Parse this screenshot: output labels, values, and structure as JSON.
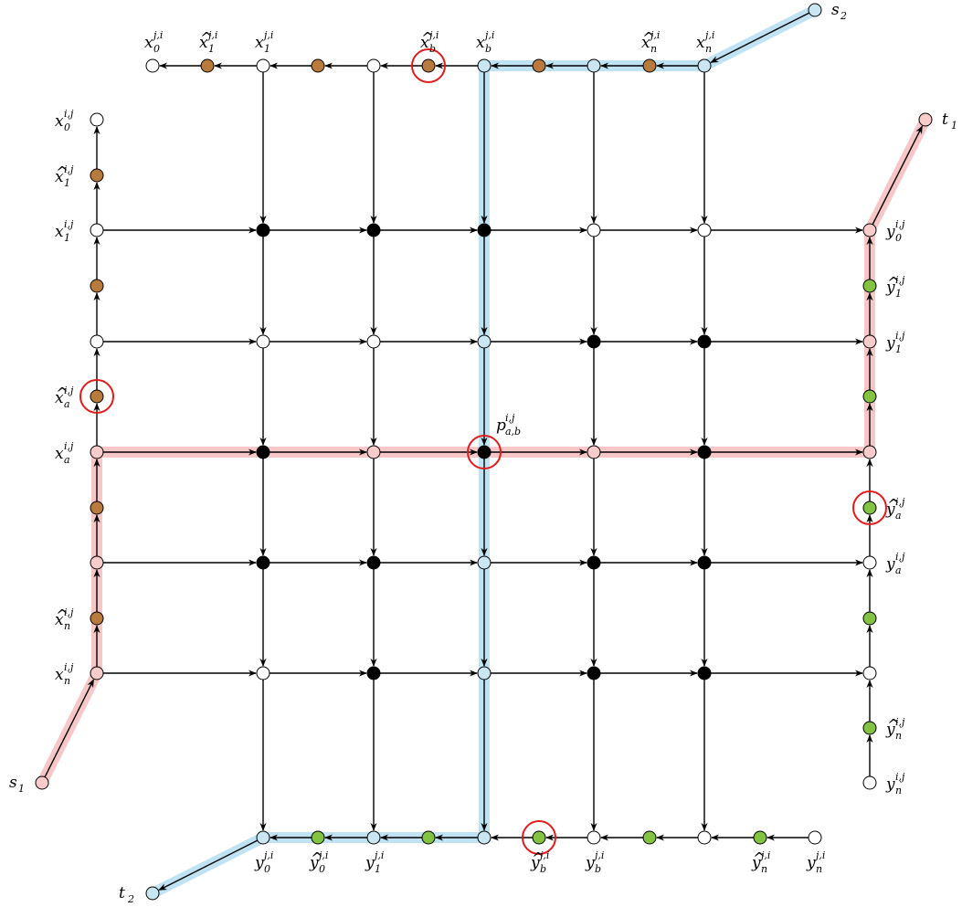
{
  "colors": {
    "node_white": "#ffffff",
    "node_black": "#000000",
    "node_brown": "#b87a3d",
    "node_green": "#82c341",
    "node_pink": "#f9cccc",
    "node_blue": "#c9e6f2",
    "highlight_red": "#f7c6c6",
    "highlight_blue": "#bfe3f2",
    "circle_red": "#e01b1b",
    "edge": "#000000"
  },
  "labels": {
    "x0_ji": {
      "base": "x",
      "hat": false,
      "sub": "0",
      "sup": "j,i"
    },
    "xh1_ji": {
      "base": "x",
      "hat": true,
      "sub": "1",
      "sup": "j,i"
    },
    "x1_ji": {
      "base": "x",
      "hat": false,
      "sub": "1",
      "sup": "j,i"
    },
    "xhb_ji": {
      "base": "x",
      "hat": true,
      "sub": "b",
      "sup": "j,i"
    },
    "xb_ji": {
      "base": "x",
      "hat": false,
      "sub": "b",
      "sup": "j,i"
    },
    "xhn_ji": {
      "base": "x",
      "hat": true,
      "sub": "n",
      "sup": "j,i"
    },
    "xn_ji": {
      "base": "x",
      "hat": false,
      "sub": "n",
      "sup": "j,i"
    },
    "s2": {
      "base": "s",
      "hat": false,
      "sub": "2",
      "sup": ""
    },
    "t1": {
      "base": "t",
      "hat": false,
      "sub": "1",
      "sup": ""
    },
    "s1": {
      "base": "s",
      "hat": false,
      "sub": "1",
      "sup": ""
    },
    "t2": {
      "base": "t",
      "hat": false,
      "sub": "2",
      "sup": ""
    },
    "x0_ij": {
      "base": "x",
      "hat": false,
      "sub": "0",
      "sup": "i,j"
    },
    "xh1_ij": {
      "base": "x",
      "hat": true,
      "sub": "1",
      "sup": "i,j"
    },
    "x1_ij": {
      "base": "x",
      "hat": false,
      "sub": "1",
      "sup": "i,j"
    },
    "xha_ij": {
      "base": "x",
      "hat": true,
      "sub": "a",
      "sup": "i,j"
    },
    "xa_ij": {
      "base": "x",
      "hat": false,
      "sub": "a",
      "sup": "i,j"
    },
    "xhn_ij": {
      "base": "x",
      "hat": true,
      "sub": "n",
      "sup": "i,j"
    },
    "xn_ij": {
      "base": "x",
      "hat": false,
      "sub": "n",
      "sup": "i,j"
    },
    "y0_ij": {
      "base": "y",
      "hat": false,
      "sub": "0",
      "sup": "i,j"
    },
    "yh1_ij": {
      "base": "y",
      "hat": true,
      "sub": "1",
      "sup": "i,j"
    },
    "y1_ij": {
      "base": "y",
      "hat": false,
      "sub": "1",
      "sup": "i,j"
    },
    "yha_ij": {
      "base": "y",
      "hat": true,
      "sub": "a",
      "sup": "i,j"
    },
    "ya_ij": {
      "base": "y",
      "hat": false,
      "sub": "a",
      "sup": "i,j"
    },
    "yhn_ij": {
      "base": "y",
      "hat": true,
      "sub": "n",
      "sup": "i,j"
    },
    "yn_ij": {
      "base": "y",
      "hat": false,
      "sub": "n",
      "sup": "i,j"
    },
    "p_ab": {
      "base": "p",
      "hat": false,
      "sub": "a,b",
      "sup": "i,j"
    },
    "y0_ji": {
      "base": "y",
      "hat": false,
      "sub": "0",
      "sup": "j,i"
    },
    "yh0_ji": {
      "base": "y",
      "hat": true,
      "sub": "0",
      "sup": "j,i"
    },
    "y1_ji": {
      "base": "y",
      "hat": false,
      "sub": "1",
      "sup": "j,i"
    },
    "yhb_ji": {
      "base": "y",
      "hat": true,
      "sub": "b",
      "sup": "j,i"
    },
    "yb_ji": {
      "base": "y",
      "hat": false,
      "sub": "b",
      "sup": "j,i"
    },
    "yhn_ji": {
      "base": "y",
      "hat": true,
      "sub": "n",
      "sup": "j,i"
    },
    "yn_ji": {
      "base": "y",
      "hat": false,
      "sub": "n",
      "sup": "j,i"
    }
  }
}
